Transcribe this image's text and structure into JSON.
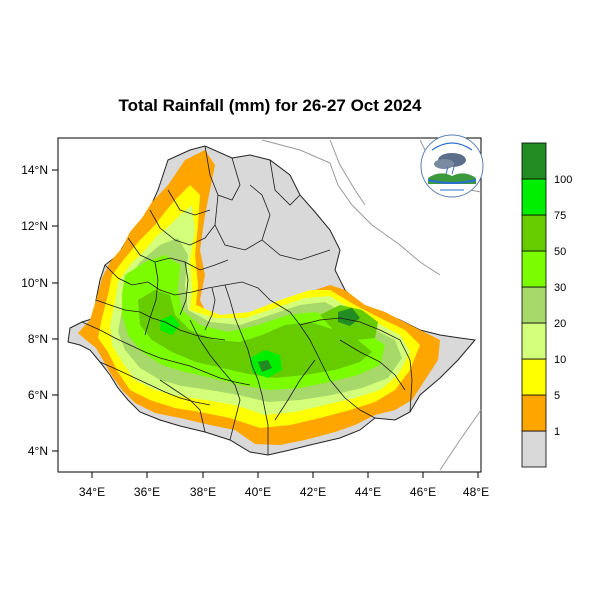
{
  "title": "Total Rainfall (mm) for 26-27 Oct 2024",
  "axes": {
    "x_ticks": [
      "34°E",
      "36°E",
      "38°E",
      "40°E",
      "42°E",
      "44°E",
      "46°E",
      "48°E"
    ],
    "y_ticks": [
      "14°N",
      "12°N",
      "10°N",
      "8°N",
      "6°N",
      "4°N"
    ],
    "x_range_deg": [
      33,
      48.2
    ],
    "y_range_deg": [
      3.2,
      15
    ]
  },
  "legend": {
    "classes": [
      {
        "label": "",
        "color": "#d9d9d9"
      },
      {
        "label": "1",
        "color": "#ffa500"
      },
      {
        "label": "5",
        "color": "#ffff00"
      },
      {
        "label": "10",
        "color": "#d4ff7a"
      },
      {
        "label": "20",
        "color": "#a6d96a"
      },
      {
        "label": "30",
        "color": "#7cfc00"
      },
      {
        "label": "50",
        "color": "#66cc00"
      },
      {
        "label": "75",
        "color": "#00ee00"
      },
      {
        "label": "100",
        "color": "#228b22"
      }
    ]
  },
  "logo": {
    "icon": "ethiopian-meteorology-logo"
  }
}
